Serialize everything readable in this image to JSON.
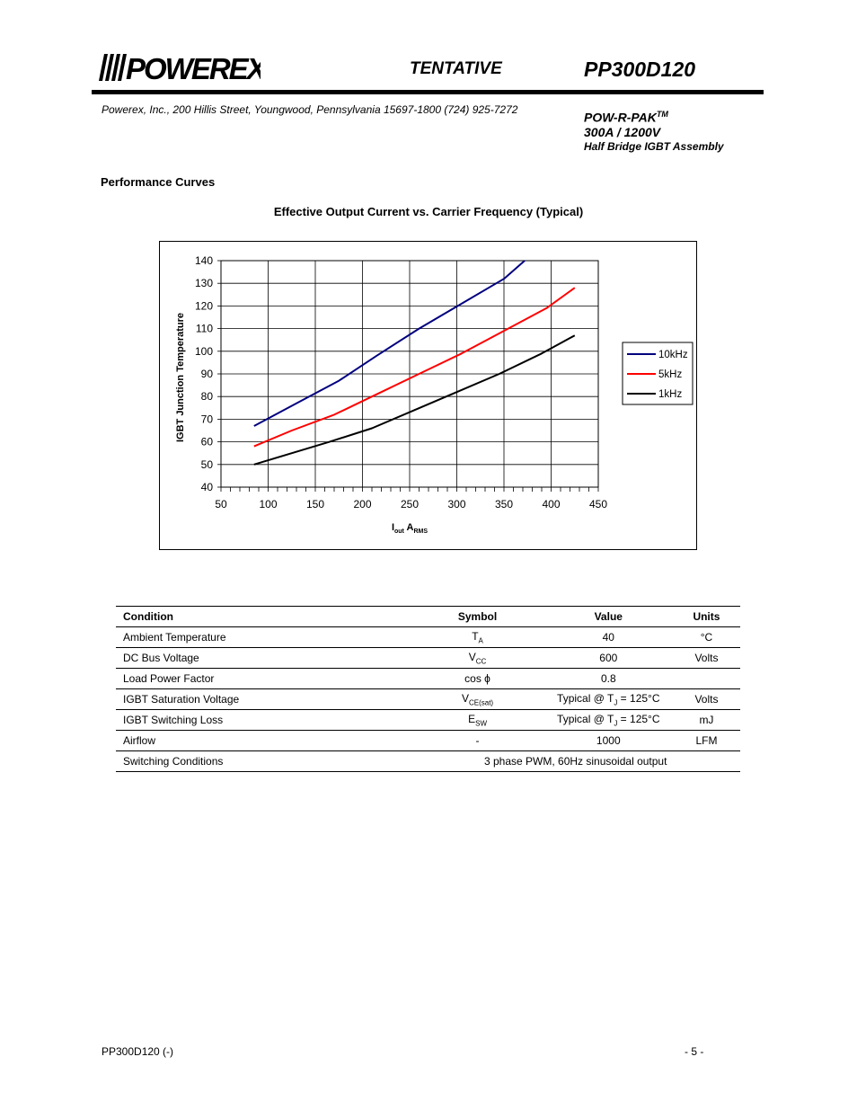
{
  "header": {
    "logo_text": "POWEREX",
    "status": "TENTATIVE",
    "part_number": "PP300D120",
    "address": "Powerex, Inc., 200 Hillis Street, Youngwood, Pennsylvania 15697-1800  (724) 925-7272",
    "product_name": "POW-R-PAK",
    "product_tm": "TM",
    "rating": "300A / 1200V",
    "description": "Half Bridge IGBT Assembly"
  },
  "section_title": "Performance Curves",
  "chart_data": {
    "type": "line",
    "title": "Effective Output Current vs. Carrier Frequency (Typical)",
    "xlabel_main": "I",
    "xlabel_sub1": "out",
    "xlabel_mid": " A",
    "xlabel_sub2": "RMS",
    "ylabel": "IGBT Junction Temperature",
    "xlim": [
      50,
      450
    ],
    "ylim": [
      40,
      140
    ],
    "x_ticks": [
      50,
      100,
      150,
      200,
      250,
      300,
      350,
      400,
      450
    ],
    "y_ticks": [
      40,
      50,
      60,
      70,
      80,
      90,
      100,
      110,
      120,
      130,
      140
    ],
    "grid": true,
    "legend_position": "right",
    "series": [
      {
        "name": "10kHz",
        "color": "#00007f",
        "x": [
          85,
          130,
          175,
          215,
          260,
          305,
          350,
          372
        ],
        "y": [
          67,
          77,
          87,
          98,
          110,
          121,
          132,
          140
        ]
      },
      {
        "name": "5kHz",
        "color": "#ff0000",
        "x": [
          85,
          125,
          170,
          215,
          260,
          305,
          350,
          395,
          425
        ],
        "y": [
          58,
          65,
          72,
          81,
          90,
          99,
          109,
          119,
          128
        ]
      },
      {
        "name": "1kHz",
        "color": "#000000",
        "x": [
          85,
          125,
          165,
          210,
          255,
          300,
          345,
          390,
          425
        ],
        "y": [
          50,
          55,
          60,
          66,
          74,
          82,
          90,
          99,
          107
        ]
      }
    ]
  },
  "table": {
    "headers": {
      "condition": "Condition",
      "symbol": "Symbol",
      "value": "Value",
      "units": "Units"
    },
    "rows": [
      {
        "condition": "Ambient Temperature",
        "sym": "T",
        "sub": "A",
        "value": "40",
        "units": "°C"
      },
      {
        "condition": "DC Bus Voltage",
        "sym": "V",
        "sub": "CC",
        "value": "600",
        "units": "Volts"
      },
      {
        "condition": "Load Power Factor",
        "sym": "cos ϕ",
        "sub": "",
        "value": "0.8",
        "units": ""
      },
      {
        "condition": "IGBT Saturation Voltage",
        "sym": "V",
        "sub": "CE(sat)",
        "value_pre": "Typical @ T",
        "value_sub": "J",
        "value_post": " = 125°C",
        "units": "Volts"
      },
      {
        "condition": "IGBT Switching Loss",
        "sym": "E",
        "sub": "SW",
        "value_pre": "Typical @ T",
        "value_sub": "J",
        "value_post": " = 125°C",
        "units": "mJ"
      },
      {
        "condition": "Airflow",
        "sym": "-",
        "sub": "",
        "value": "1000",
        "units": "LFM"
      }
    ],
    "switching": {
      "condition": "Switching Conditions",
      "value": "3 phase PWM, 60Hz sinusoidal output"
    }
  },
  "footer": {
    "left": "PP300D120 (-)",
    "right": "- 5 -"
  }
}
